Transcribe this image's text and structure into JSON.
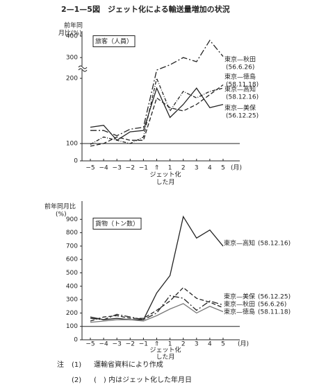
{
  "title": "2—1—5図　ジェット化による輸送量増加の状況",
  "chart_data": [
    {
      "type": "line",
      "title": "旅客（人員）",
      "y_label": [
        "前年同",
        "月比(%)"
      ],
      "categories": [
        "−5",
        "−4",
        "−3",
        "−2",
        "−1",
        "⇑",
        "1",
        "2",
        "3",
        "4",
        "5"
      ],
      "x_unit": "(月)",
      "x_annotation": [
        "ジェット化",
        "した月"
      ],
      "ylim": [
        0,
        400
      ],
      "yticks": [
        0,
        100,
        200,
        300,
        400
      ],
      "axis_break": true,
      "hline": 100,
      "series": [
        {
          "name": "東京—秋田",
          "date": "(56.6.26)",
          "color": "#222",
          "line_style": "dashdot",
          "values": [
            120,
            120,
            112,
            122,
            125,
            240,
            265,
            300,
            280,
            380,
            305
          ]
        },
        {
          "name": "東京—徳島",
          "date": "(58.11.18)",
          "color": "#222",
          "line_style": "dashed",
          "values": [
            85,
            100,
            110,
            105,
            105,
            170,
            155,
            150,
            160,
            175,
            190
          ]
        },
        {
          "name": "東京—高知",
          "date": "(58.12.16)",
          "color": "#222",
          "line_style": "dashdotshort",
          "values": [
            95,
            110,
            105,
            100,
            110,
            200,
            150,
            180,
            170,
            180,
            185
          ]
        },
        {
          "name": "東京—美保",
          "date": "(56.12.25)",
          "color": "#222",
          "line_style": "solid",
          "values": [
            125,
            128,
            105,
            118,
            120,
            185,
            140,
            160,
            185,
            155,
            160
          ]
        }
      ]
    },
    {
      "type": "line",
      "title": "貨物（トン数）",
      "y_label": [
        "前年同月比",
        "(%)"
      ],
      "categories": [
        "−5",
        "−4",
        "−3",
        "−2",
        "−1",
        "⇑",
        "1",
        "2",
        "3",
        "4",
        "5"
      ],
      "x_unit": "(月)",
      "x_annotation": [
        "ジェット化",
        "した月"
      ],
      "ylim": [
        0,
        1000
      ],
      "yticks": [
        0,
        100,
        200,
        300,
        400,
        500,
        600,
        700,
        800,
        900
      ],
      "axis_break": false,
      "hline": 100,
      "series": [
        {
          "name": "東京—高知",
          "date": "(58.12.16)",
          "color": "#222",
          "line_style": "solid",
          "values": [
            170,
            150,
            160,
            150,
            150,
            350,
            480,
            920,
            760,
            820,
            700
          ]
        },
        {
          "name": "東京—美保",
          "date": "(56.12.25)",
          "color": "#222",
          "line_style": "dashed",
          "values": [
            140,
            170,
            180,
            160,
            160,
            220,
            290,
            390,
            310,
            280,
            240
          ]
        },
        {
          "name": "東京—秋田",
          "date": "(56.6.26)",
          "color": "#222",
          "line_style": "dashdot",
          "values": [
            160,
            150,
            190,
            170,
            150,
            200,
            330,
            310,
            220,
            290,
            260
          ]
        },
        {
          "name": "東京—徳島",
          "date": "(58.11.18)",
          "color": "#777",
          "line_style": "solid",
          "values": [
            130,
            140,
            150,
            150,
            140,
            180,
            230,
            270,
            200,
            250,
            210
          ]
        }
      ]
    }
  ],
  "notes": {
    "mark": "注",
    "items": [
      {
        "num": "(1)",
        "text": "運輸省資料により作成"
      },
      {
        "num": "(2)",
        "text": "(　) 内はジェット化した年月日"
      }
    ]
  }
}
